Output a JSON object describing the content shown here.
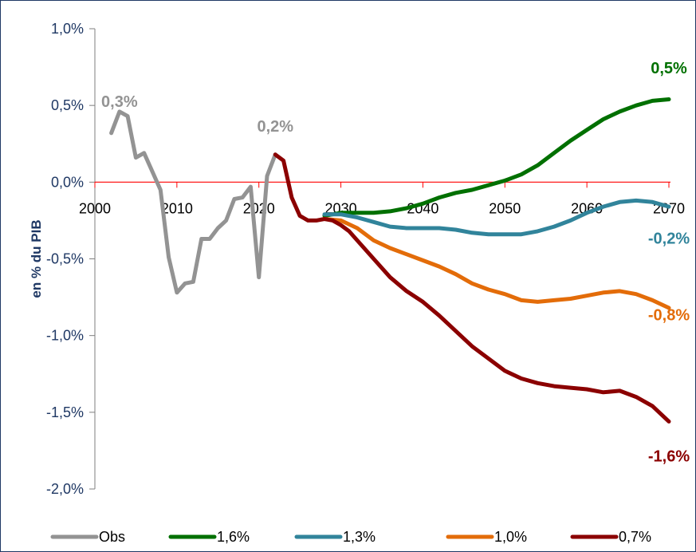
{
  "chart_data": {
    "type": "line",
    "title": "",
    "xlabel": "",
    "ylabel": "en % du PIB",
    "xlim": [
      2000,
      2070
    ],
    "ylim": [
      -2.0,
      1.0
    ],
    "x_ticks": [
      "2000",
      "2010",
      "2020",
      "2030",
      "2040",
      "2050",
      "2060",
      "2070"
    ],
    "y_ticks": [
      "1,0%",
      "0,5%",
      "0,0%",
      "-0,5%",
      "-1,0%",
      "-1,5%",
      "-2,0%"
    ],
    "grid": false,
    "zero_line_color": "#ff0000",
    "legend_position": "bottom",
    "series": [
      {
        "name": "Obs",
        "color": "#939393",
        "x": [
          2002,
          2003,
          2004,
          2005,
          2006,
          2007,
          2008,
          2009,
          2010,
          2011,
          2012,
          2013,
          2014,
          2015,
          2016,
          2017,
          2018,
          2019,
          2020,
          2021,
          2022
        ],
        "y": [
          0.32,
          0.46,
          0.43,
          0.16,
          0.19,
          0.07,
          -0.05,
          -0.49,
          -0.72,
          -0.66,
          -0.65,
          -0.37,
          -0.37,
          -0.3,
          -0.25,
          -0.11,
          -0.1,
          -0.03,
          -0.62,
          0.04,
          0.18
        ]
      },
      {
        "name": "1,6%",
        "color": "#007000",
        "x": [
          2028,
          2030,
          2032,
          2034,
          2036,
          2038,
          2040,
          2042,
          2044,
          2046,
          2048,
          2050,
          2052,
          2054,
          2056,
          2058,
          2060,
          2062,
          2064,
          2066,
          2068,
          2070
        ],
        "y": [
          -0.22,
          -0.2,
          -0.2,
          -0.2,
          -0.19,
          -0.17,
          -0.14,
          -0.1,
          -0.07,
          -0.05,
          -0.02,
          0.01,
          0.05,
          0.11,
          0.19,
          0.27,
          0.34,
          0.41,
          0.46,
          0.5,
          0.53,
          0.54
        ]
      },
      {
        "name": "1,3%",
        "color": "#31849b",
        "x": [
          2028,
          2030,
          2032,
          2034,
          2036,
          2038,
          2040,
          2042,
          2044,
          2046,
          2048,
          2050,
          2052,
          2054,
          2056,
          2058,
          2060,
          2062,
          2064,
          2066,
          2068,
          2070
        ],
        "y": [
          -0.21,
          -0.21,
          -0.23,
          -0.26,
          -0.29,
          -0.3,
          -0.3,
          -0.3,
          -0.31,
          -0.33,
          -0.34,
          -0.34,
          -0.34,
          -0.32,
          -0.29,
          -0.25,
          -0.2,
          -0.16,
          -0.13,
          -0.12,
          -0.13,
          -0.16
        ]
      },
      {
        "name": "1,0%",
        "color": "#e36c09",
        "x": [
          2028,
          2030,
          2032,
          2034,
          2036,
          2038,
          2040,
          2042,
          2044,
          2046,
          2048,
          2050,
          2052,
          2054,
          2056,
          2058,
          2060,
          2062,
          2064,
          2066,
          2068,
          2070
        ],
        "y": [
          -0.24,
          -0.25,
          -0.3,
          -0.38,
          -0.43,
          -0.47,
          -0.51,
          -0.55,
          -0.6,
          -0.66,
          -0.7,
          -0.73,
          -0.77,
          -0.78,
          -0.77,
          -0.76,
          -0.74,
          -0.72,
          -0.71,
          -0.73,
          -0.77,
          -0.82
        ]
      },
      {
        "name": "0,7%",
        "color": "#8b0000",
        "x": [
          2022,
          2023,
          2024,
          2025,
          2026,
          2027,
          2028,
          2029,
          2030,
          2031,
          2032,
          2034,
          2036,
          2038,
          2040,
          2042,
          2044,
          2046,
          2048,
          2050,
          2052,
          2054,
          2056,
          2058,
          2060,
          2062,
          2064,
          2066,
          2068,
          2070
        ],
        "y": [
          0.18,
          0.14,
          -0.1,
          -0.22,
          -0.25,
          -0.25,
          -0.24,
          -0.25,
          -0.28,
          -0.32,
          -0.38,
          -0.5,
          -0.62,
          -0.71,
          -0.78,
          -0.87,
          -0.97,
          -1.07,
          -1.15,
          -1.23,
          -1.28,
          -1.31,
          -1.33,
          -1.34,
          -1.35,
          -1.37,
          -1.36,
          -1.4,
          -1.46,
          -1.56
        ]
      }
    ],
    "annotations": [
      {
        "text": "0,3%",
        "x": 2003,
        "y": 0.49,
        "color": "#939393",
        "anchor": "middle"
      },
      {
        "text": "0,2%",
        "x": 2022,
        "y": 0.33,
        "color": "#939393",
        "anchor": "middle"
      },
      {
        "text": "0,5%",
        "x": 2070,
        "y": 0.71,
        "color": "#007000",
        "anchor": "middle"
      },
      {
        "text": "-0,2%",
        "x": 2070,
        "y": -0.4,
        "color": "#31849b",
        "anchor": "middle"
      },
      {
        "text": "-0,8%",
        "x": 2070,
        "y": -0.9,
        "color": "#e36c09",
        "anchor": "middle"
      },
      {
        "text": "-1,6%",
        "x": 2070,
        "y": -1.82,
        "color": "#8b0000",
        "anchor": "middle"
      }
    ]
  }
}
